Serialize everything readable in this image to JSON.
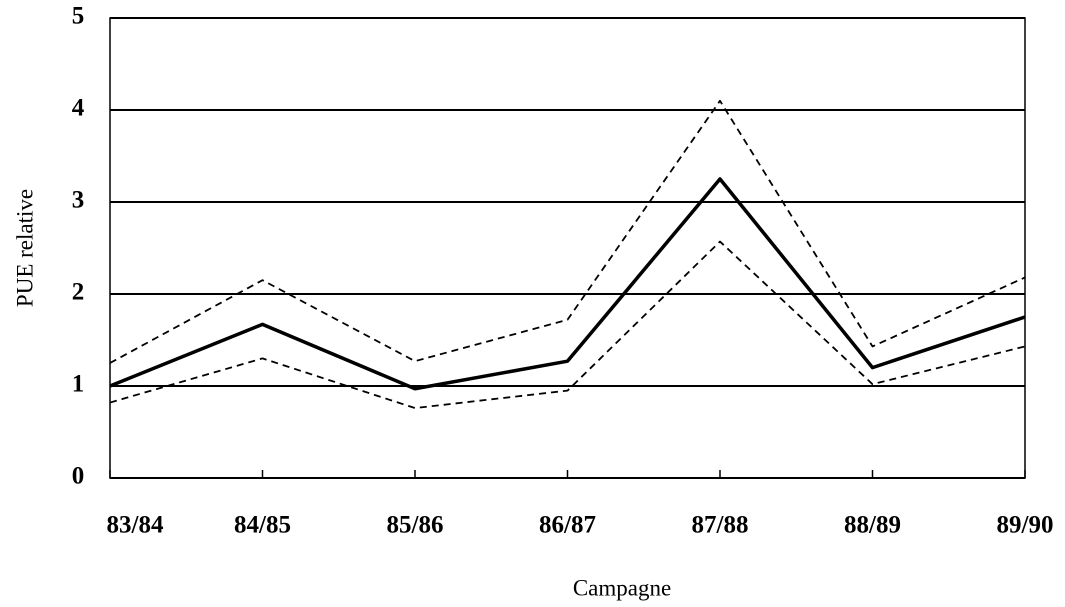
{
  "chart_data": {
    "type": "line",
    "xlabel": "Campagne",
    "ylabel": "PUE relative",
    "categories": [
      "83/84",
      "84/85",
      "85/86",
      "86/87",
      "87/88",
      "88/89",
      "89/90"
    ],
    "series": [
      {
        "color": "#000000",
        "dashed": false,
        "values": [
          1.0,
          1.67,
          0.97,
          1.27,
          3.25,
          1.2,
          1.75
        ]
      },
      {
        "color": "#000000",
        "dashed": true,
        "values": [
          1.25,
          2.15,
          1.27,
          1.72,
          4.1,
          1.43,
          2.18
        ]
      },
      {
        "color": "#000000",
        "dashed": true,
        "values": [
          0.82,
          1.3,
          0.76,
          0.95,
          2.57,
          1.02,
          1.43
        ]
      }
    ],
    "ylim": [
      0,
      5
    ],
    "yticks": [
      0,
      1,
      2,
      3,
      4,
      5
    ],
    "grid": true
  }
}
